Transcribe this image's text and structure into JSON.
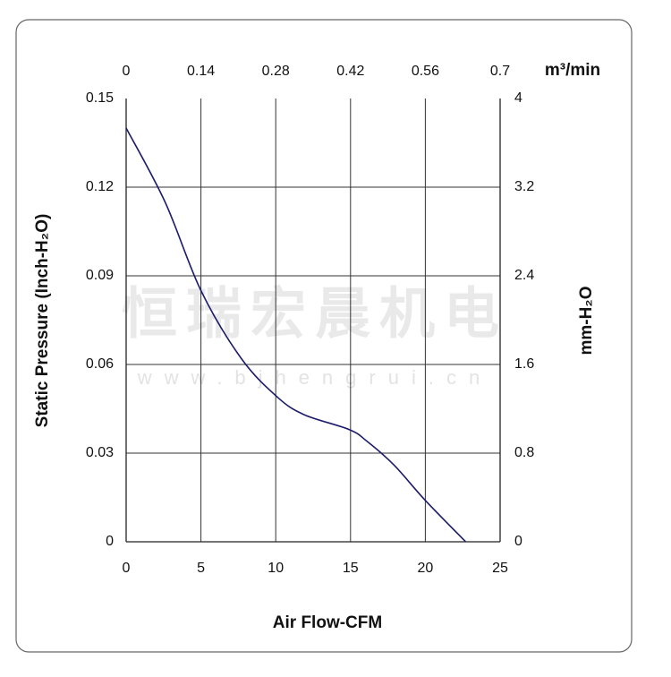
{
  "chart_data": {
    "type": "line",
    "xlabel": "Air Flow-CFM",
    "ylabel": "Static Pressure (Inch-H₂O)",
    "y2label": "mm-H₂O",
    "x2label": "m³/min",
    "watermark": "恒瑞宏晨机电",
    "watermark_url": "www.bjhengrui.cn",
    "xlim": [
      0,
      25
    ],
    "xticks": [
      0,
      5,
      10,
      15,
      20,
      25
    ],
    "ylim": [
      0,
      0.15
    ],
    "yticks": [
      0,
      0.03,
      0.06,
      0.09,
      0.12,
      0.15
    ],
    "x2lim": [
      0,
      0.7
    ],
    "x2ticks": [
      0,
      0.14,
      0.28,
      0.42,
      0.56,
      0.7
    ],
    "y2lim": [
      0,
      4
    ],
    "y2ticks": [
      0,
      0.8,
      1.6,
      2.4,
      3.2,
      4
    ],
    "grid": true,
    "series": [
      {
        "color": "#1c1c6b",
        "x": [
          0,
          2.6,
          5.0,
          7.7,
          10.1,
          11.9,
          14.9,
          16.1,
          17.9,
          20.0,
          22.7
        ],
        "values": [
          0.14,
          0.115,
          0.085,
          0.062,
          0.049,
          0.043,
          0.038,
          0.034,
          0.026,
          0.014,
          0
        ]
      }
    ]
  }
}
